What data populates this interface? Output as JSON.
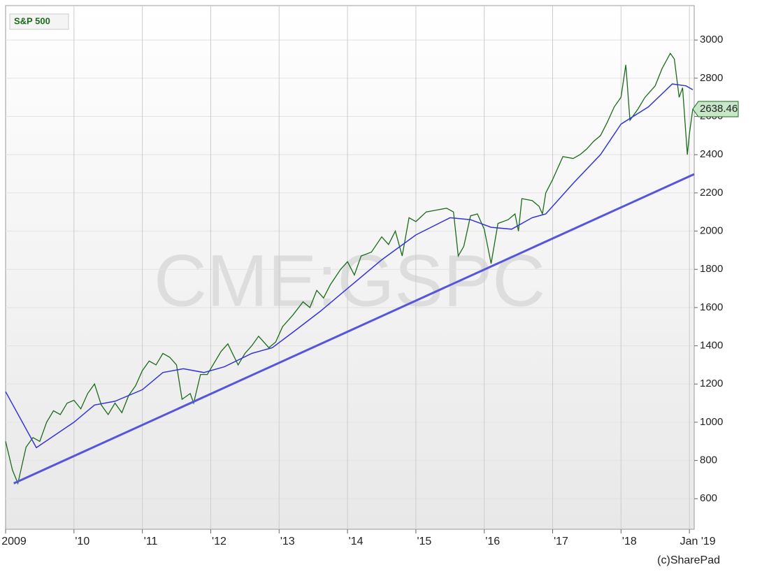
{
  "chart_data": {
    "type": "line",
    "title": "S&P 500",
    "watermark": "CME:GSPC",
    "credit": "(c)SharePad",
    "xlim": [
      2009,
      2019.07
    ],
    "ylim": [
      440,
      3180
    ],
    "xticks": [
      {
        "value": 2009,
        "label": "2009"
      },
      {
        "value": 2010,
        "label": "'10"
      },
      {
        "value": 2011,
        "label": "'11"
      },
      {
        "value": 2012,
        "label": "'12"
      },
      {
        "value": 2013,
        "label": "'13"
      },
      {
        "value": 2014,
        "label": "'14"
      },
      {
        "value": 2015,
        "label": "'15"
      },
      {
        "value": 2016,
        "label": "'16"
      },
      {
        "value": 2017,
        "label": "'17"
      },
      {
        "value": 2018,
        "label": "'18"
      },
      {
        "value": 2019,
        "label": "Jan '19"
      }
    ],
    "yticks": [
      600,
      800,
      1000,
      1200,
      1400,
      1600,
      1800,
      2000,
      2200,
      2400,
      2600,
      2800,
      3000
    ],
    "grid": true,
    "series": [
      {
        "name": "S&P 500",
        "color": "#1a6b1a",
        "x": [
          2009.0,
          2009.1,
          2009.18,
          2009.3,
          2009.4,
          2009.5,
          2009.6,
          2009.7,
          2009.8,
          2009.9,
          2010.0,
          2010.1,
          2010.2,
          2010.3,
          2010.4,
          2010.5,
          2010.6,
          2010.7,
          2010.8,
          2010.9,
          2011.0,
          2011.1,
          2011.2,
          2011.3,
          2011.4,
          2011.5,
          2011.58,
          2011.7,
          2011.75,
          2011.85,
          2011.95,
          2012.0,
          2012.15,
          2012.25,
          2012.4,
          2012.5,
          2012.6,
          2012.7,
          2012.85,
          2012.95,
          2013.05,
          2013.2,
          2013.35,
          2013.45,
          2013.55,
          2013.65,
          2013.75,
          2013.9,
          2014.0,
          2014.1,
          2014.2,
          2014.35,
          2014.5,
          2014.6,
          2014.7,
          2014.8,
          2014.9,
          2015.0,
          2015.15,
          2015.3,
          2015.45,
          2015.55,
          2015.62,
          2015.7,
          2015.8,
          2015.9,
          2016.0,
          2016.1,
          2016.2,
          2016.35,
          2016.45,
          2016.5,
          2016.55,
          2016.7,
          2016.8,
          2016.85,
          2016.9,
          2017.0,
          2017.15,
          2017.3,
          2017.4,
          2017.5,
          2017.6,
          2017.7,
          2017.8,
          2017.9,
          2018.0,
          2018.07,
          2018.13,
          2018.25,
          2018.35,
          2018.5,
          2018.6,
          2018.72,
          2018.78,
          2018.85,
          2018.9,
          2018.97,
          2019.0,
          2019.05
        ],
        "values": [
          900,
          750,
          680,
          870,
          920,
          900,
          1000,
          1060,
          1040,
          1100,
          1115,
          1070,
          1150,
          1200,
          1090,
          1040,
          1100,
          1050,
          1140,
          1190,
          1270,
          1320,
          1300,
          1360,
          1340,
          1300,
          1120,
          1150,
          1100,
          1250,
          1250,
          1280,
          1370,
          1410,
          1300,
          1360,
          1400,
          1450,
          1390,
          1420,
          1500,
          1560,
          1630,
          1600,
          1690,
          1650,
          1720,
          1800,
          1840,
          1770,
          1870,
          1890,
          1970,
          1930,
          2000,
          1870,
          2070,
          2050,
          2100,
          2110,
          2120,
          2100,
          1870,
          1920,
          2080,
          2090,
          2010,
          1830,
          2040,
          2060,
          2090,
          2000,
          2170,
          2160,
          2130,
          2090,
          2200,
          2270,
          2390,
          2380,
          2400,
          2430,
          2470,
          2500,
          2570,
          2650,
          2700,
          2870,
          2580,
          2640,
          2700,
          2760,
          2850,
          2930,
          2900,
          2700,
          2750,
          2400,
          2510,
          2638.46
        ]
      },
      {
        "color": "#3333dd",
        "x": [
          2009.0,
          2009.45,
          2010.0,
          2010.3,
          2010.6,
          2011.0,
          2011.3,
          2011.6,
          2011.9,
          2012.2,
          2012.6,
          2012.9,
          2013.2,
          2013.6,
          2014.0,
          2014.5,
          2015.0,
          2015.5,
          2015.8,
          2016.1,
          2016.4,
          2016.7,
          2016.9,
          2017.3,
          2017.7,
          2018.0,
          2018.4,
          2018.75,
          2018.95,
          2019.05
        ],
        "values": [
          1160,
          867,
          1000,
          1090,
          1110,
          1170,
          1260,
          1280,
          1260,
          1290,
          1360,
          1390,
          1470,
          1580,
          1700,
          1850,
          1980,
          2070,
          2060,
          2020,
          2010,
          2070,
          2090,
          2250,
          2400,
          2560,
          2650,
          2770,
          2760,
          2740
        ]
      },
      {
        "color": "#5555dd",
        "x": [
          2009.12,
          2019.07
        ],
        "values": [
          680,
          2298
        ]
      }
    ]
  }
}
